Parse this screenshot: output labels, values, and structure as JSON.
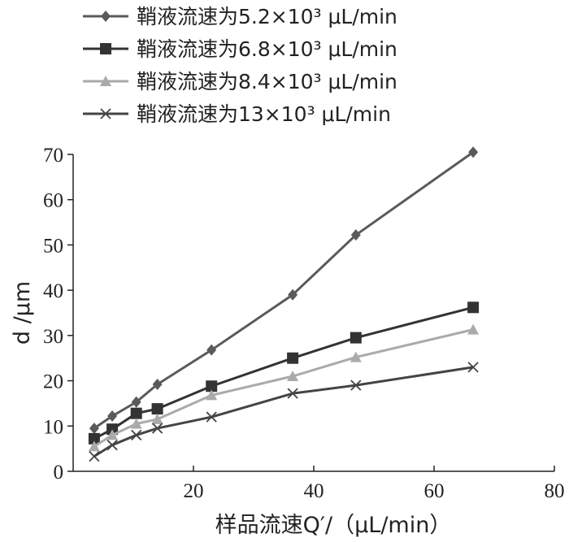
{
  "chart_data": {
    "type": "line",
    "xlabel": "样品流速Q′/（μL/min）",
    "ylabel": "d /μm",
    "xlim": [
      0,
      80
    ],
    "ylim": [
      0,
      70
    ],
    "xticks": [
      20,
      40,
      60,
      80
    ],
    "yticks": [
      0,
      10,
      20,
      30,
      40,
      50,
      60,
      70
    ],
    "grid": false,
    "legend_position": "top-left",
    "series": [
      {
        "name": "鞘液流速为5.2×10³ μL/min",
        "marker": "diamond",
        "color": "#5a5a5a",
        "x": [
          3.5,
          6.5,
          10.5,
          14,
          23,
          36.5,
          47,
          66.5
        ],
        "y": [
          9.5,
          12.2,
          15.3,
          19.2,
          26.8,
          39,
          52.2,
          70.5
        ]
      },
      {
        "name": "鞘液流速为6.8×10³ μL/min",
        "marker": "square",
        "color": "#333333",
        "x": [
          3.5,
          6.5,
          10.5,
          14,
          23,
          36.5,
          47,
          66.5
        ],
        "y": [
          7.2,
          9.3,
          12.8,
          13.8,
          18.8,
          25,
          29.5,
          36.2
        ]
      },
      {
        "name": "鞘液流速为8.4×10³ μL/min",
        "marker": "triangle",
        "color": "#aaaaaa",
        "x": [
          3.5,
          6.5,
          10.5,
          14,
          23,
          36.5,
          47,
          66.5
        ],
        "y": [
          5.5,
          8,
          10.5,
          11.5,
          16.8,
          21,
          25.2,
          31.3
        ]
      },
      {
        "name": "鞘液流速为13×10³ μL/min",
        "marker": "x",
        "color": "#444444",
        "x": [
          3.5,
          6.5,
          10.5,
          14,
          23,
          36.5,
          47,
          66.5
        ],
        "y": [
          3.3,
          5.8,
          8,
          9.5,
          12,
          17.2,
          19,
          23
        ]
      }
    ]
  }
}
